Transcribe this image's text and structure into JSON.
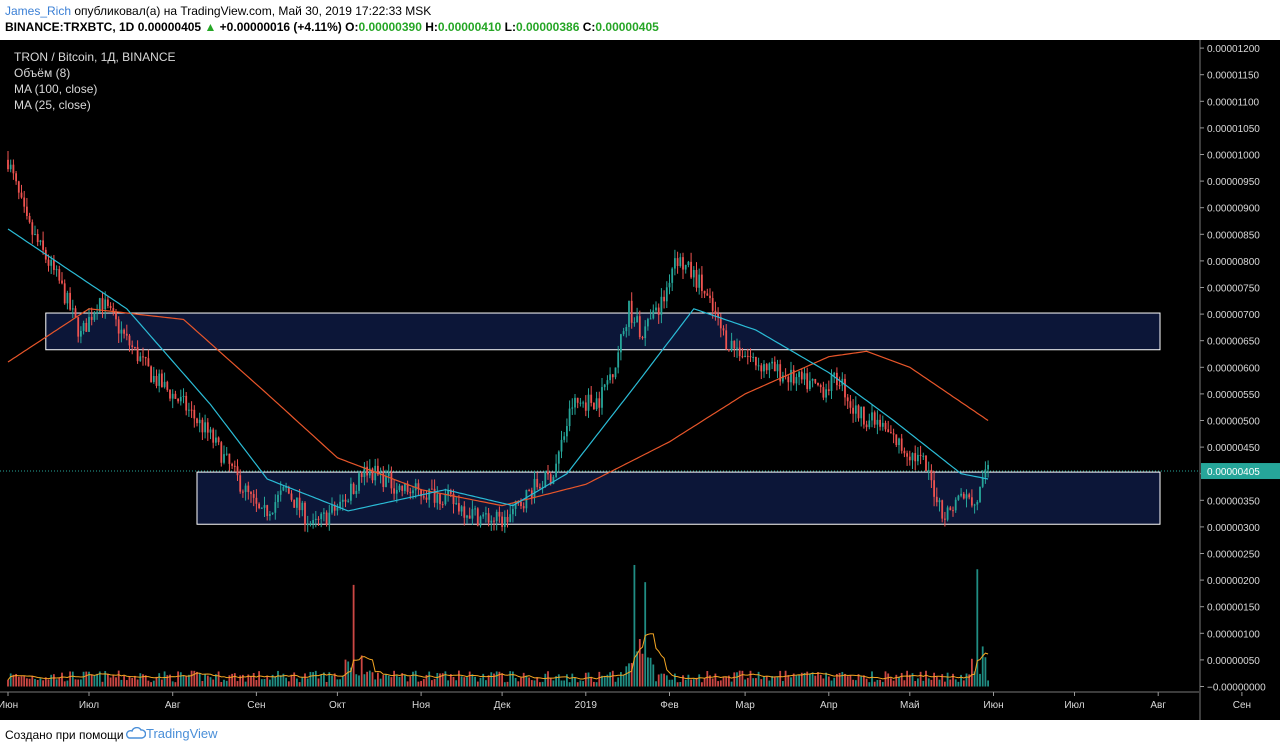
{
  "header": {
    "author": "James_Rich",
    "published_text": "опубликовал(а) на TradingView.com, Май 30, 2019 17:22:33 MSK",
    "symbol": "BINANCE:TRXBTC, 1D",
    "last_price": "0.00000405",
    "change_arrow": "▲",
    "change": "+0.00000016 (+4.11%)",
    "open_label": "O:",
    "open": "0.00000390",
    "high_label": "H:",
    "high": "0.00000410",
    "low_label": "L:",
    "low": "0.00000386",
    "close_label": "C:",
    "close": "0.00000405"
  },
  "legend": {
    "title": "TRON / Bitcoin, 1Д, BINANCE",
    "volume": "Объём (8)",
    "ma100": "MA (100, close)",
    "ma25": "MA (25, close)"
  },
  "footer": {
    "created_with": "Создано при помощи",
    "brand": "TradingView",
    "brand_icon": "tradingview-cloud-icon"
  },
  "colors": {
    "background": "#000000",
    "up": "#26a69a",
    "down": "#ef5350",
    "ma25": "#2bbcd6",
    "ma100": "#e8562a",
    "zone_fill": "#0c1638",
    "zone_stroke": "#ffffff",
    "price_tag": "#26a69a",
    "volume_ma": "#f5a623"
  },
  "chart_data": {
    "type": "candlestick",
    "title": "TRON / Bitcoin, 1Д, BINANCE",
    "price_axis": {
      "ticks": [
        "0.00001200",
        "0.00001150",
        "0.00001100",
        "0.00001050",
        "0.00001000",
        "0.00000950",
        "0.00000900",
        "0.00000850",
        "0.00000800",
        "0.00000750",
        "0.00000700",
        "0.00000650",
        "0.00000600",
        "0.00000550",
        "0.00000500",
        "0.00000450",
        "0.00000400",
        "0.00000350",
        "0.00000300",
        "0.00000250",
        "0.00000200",
        "0.00000150",
        "0.00000100",
        "0.00000050",
        "−0.00000000"
      ],
      "range": [
        -5e-10,
        1.21e-05
      ],
      "current_price": 4.05e-06,
      "current_price_label": "0.00000405"
    },
    "time_axis": {
      "labels": [
        "Июн",
        "Июл",
        "Авг",
        "Сен",
        "Окт",
        "Ноя",
        "Дек",
        "2019",
        "Фев",
        "Мар",
        "Апр",
        "Май",
        "Июн",
        "Июл",
        "Авг",
        "Сен"
      ],
      "start": "2018-06-01",
      "end_visible": "2019-09-30",
      "last_candle": "2019-05-30"
    },
    "price_path": [
      {
        "date": "2018-06-01",
        "close": 9.9e-06
      },
      {
        "date": "2018-06-08",
        "close": 8.7e-06
      },
      {
        "date": "2018-06-20",
        "close": 7.6e-06
      },
      {
        "date": "2018-06-28",
        "close": 6.6e-06
      },
      {
        "date": "2018-07-05",
        "close": 7.3e-06
      },
      {
        "date": "2018-07-15",
        "close": 6.5e-06
      },
      {
        "date": "2018-07-25",
        "close": 5.8e-06
      },
      {
        "date": "2018-08-05",
        "close": 5.3e-06
      },
      {
        "date": "2018-08-15",
        "close": 4.7e-06
      },
      {
        "date": "2018-08-25",
        "close": 3.9e-06
      },
      {
        "date": "2018-09-03",
        "close": 3.2e-06
      },
      {
        "date": "2018-09-12",
        "close": 3.7e-06
      },
      {
        "date": "2018-09-22",
        "close": 3e-06
      },
      {
        "date": "2018-10-02",
        "close": 3.4e-06
      },
      {
        "date": "2018-10-12",
        "close": 4.1e-06
      },
      {
        "date": "2018-10-25",
        "close": 3.7e-06
      },
      {
        "date": "2018-11-08",
        "close": 3.6e-06
      },
      {
        "date": "2018-11-22",
        "close": 3.2e-06
      },
      {
        "date": "2018-12-02",
        "close": 3.1e-06
      },
      {
        "date": "2018-12-12",
        "close": 3.7e-06
      },
      {
        "date": "2018-12-20",
        "close": 4e-06
      },
      {
        "date": "2018-12-27",
        "close": 5.3e-06
      },
      {
        "date": "2019-01-06",
        "close": 5.4e-06
      },
      {
        "date": "2019-01-12",
        "close": 6.1e-06
      },
      {
        "date": "2019-01-17",
        "close": 7.1e-06
      },
      {
        "date": "2019-01-22",
        "close": 6.6e-06
      },
      {
        "date": "2019-01-30",
        "close": 7.3e-06
      },
      {
        "date": "2019-02-03",
        "close": 8.1e-06
      },
      {
        "date": "2019-02-12",
        "close": 7.6e-06
      },
      {
        "date": "2019-02-22",
        "close": 6.5e-06
      },
      {
        "date": "2019-03-05",
        "close": 6.1e-06
      },
      {
        "date": "2019-03-18",
        "close": 5.8e-06
      },
      {
        "date": "2019-03-30",
        "close": 5.6e-06
      },
      {
        "date": "2019-04-05",
        "close": 5.8e-06
      },
      {
        "date": "2019-04-10",
        "close": 5.2e-06
      },
      {
        "date": "2019-04-20",
        "close": 4.9e-06
      },
      {
        "date": "2019-04-28",
        "close": 4.5e-06
      },
      {
        "date": "2019-05-06",
        "close": 4.2e-06
      },
      {
        "date": "2019-05-14",
        "close": 3.2e-06
      },
      {
        "date": "2019-05-20",
        "close": 3.6e-06
      },
      {
        "date": "2019-05-25",
        "close": 3.4e-06
      },
      {
        "date": "2019-05-30",
        "close": 4.05e-06
      }
    ],
    "ma25_path": [
      {
        "date": "2018-06-01",
        "value": 8.6e-06
      },
      {
        "date": "2018-07-15",
        "value": 7.1e-06
      },
      {
        "date": "2018-08-15",
        "value": 5.3e-06
      },
      {
        "date": "2018-09-05",
        "value": 3.9e-06
      },
      {
        "date": "2018-10-05",
        "value": 3.3e-06
      },
      {
        "date": "2018-11-10",
        "value": 3.7e-06
      },
      {
        "date": "2018-12-05",
        "value": 3.4e-06
      },
      {
        "date": "2018-12-25",
        "value": 4e-06
      },
      {
        "date": "2019-01-20",
        "value": 5.7e-06
      },
      {
        "date": "2019-02-10",
        "value": 7.1e-06
      },
      {
        "date": "2019-03-05",
        "value": 6.7e-06
      },
      {
        "date": "2019-04-01",
        "value": 5.9e-06
      },
      {
        "date": "2019-04-25",
        "value": 5e-06
      },
      {
        "date": "2019-05-20",
        "value": 4e-06
      },
      {
        "date": "2019-05-30",
        "value": 3.9e-06
      }
    ],
    "ma100_path": [
      {
        "date": "2018-06-01",
        "value": 6.1e-06
      },
      {
        "date": "2018-07-01",
        "value": 7.1e-06
      },
      {
        "date": "2018-08-05",
        "value": 6.9e-06
      },
      {
        "date": "2018-09-05",
        "value": 5.5e-06
      },
      {
        "date": "2018-10-01",
        "value": 4.3e-06
      },
      {
        "date": "2018-11-01",
        "value": 3.7e-06
      },
      {
        "date": "2018-12-01",
        "value": 3.4e-06
      },
      {
        "date": "2019-01-01",
        "value": 3.8e-06
      },
      {
        "date": "2019-02-01",
        "value": 4.6e-06
      },
      {
        "date": "2019-03-01",
        "value": 5.5e-06
      },
      {
        "date": "2019-04-01",
        "value": 6.2e-06
      },
      {
        "date": "2019-04-15",
        "value": 6.3e-06
      },
      {
        "date": "2019-05-01",
        "value": 6e-06
      },
      {
        "date": "2019-05-30",
        "value": 5e-06
      }
    ],
    "zones": [
      {
        "from": "2018-06-15",
        "to": "2019-09-30",
        "low": 6.33e-06,
        "high": 7.02e-06
      },
      {
        "from": "2018-08-10",
        "to": "2019-09-30",
        "low": 3.05e-06,
        "high": 4.03e-06
      }
    ],
    "volume": {
      "label": "Объём (8)",
      "peak_dates": [
        "2018-10-07",
        "2019-01-19",
        "2019-01-23",
        "2019-05-26"
      ]
    }
  }
}
